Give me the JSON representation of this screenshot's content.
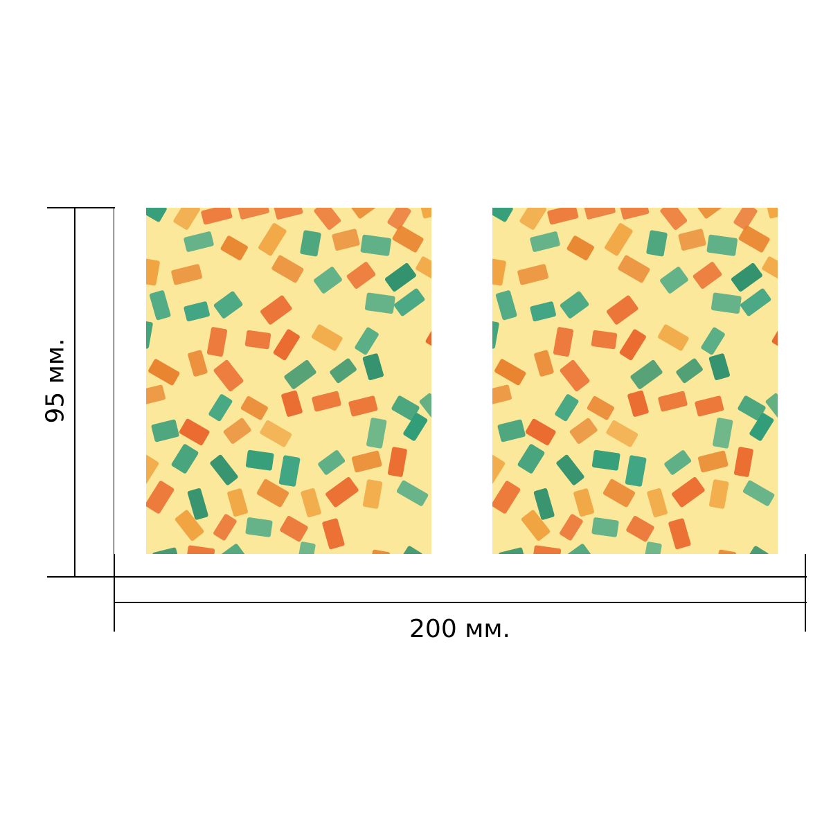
{
  "dimensions": {
    "width_label": "200 мм.",
    "height_label": "95 мм."
  },
  "pattern": {
    "background": "#fbe89a",
    "colors": [
      "#1f8a6a",
      "#2a9a78",
      "#e8802a",
      "#f0a23e",
      "#e9652a",
      "#3aa383"
    ]
  }
}
